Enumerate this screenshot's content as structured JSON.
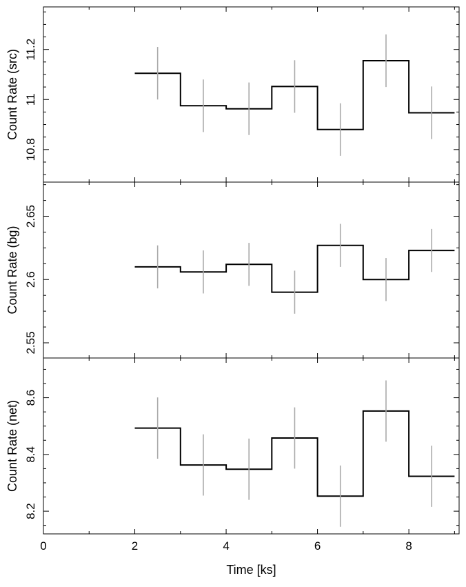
{
  "chart_data": [
    {
      "type": "line",
      "step": true,
      "ylabel": "Count Rate (src)",
      "xlim": [
        0,
        9.1
      ],
      "ylim": [
        10.67,
        11.37
      ],
      "y_ticks": [
        10.8,
        11,
        11.2
      ],
      "y_tick_labels": [
        "10.8",
        "11",
        "11.2"
      ],
      "bins": [
        [
          2,
          3
        ],
        [
          3,
          4
        ],
        [
          4,
          5
        ],
        [
          5,
          6
        ],
        [
          6,
          7
        ],
        [
          7,
          8
        ],
        [
          8,
          9
        ]
      ],
      "x": [
        2.5,
        3.5,
        4.5,
        5.5,
        6.5,
        7.5,
        8.5
      ],
      "values": [
        11.105,
        10.975,
        10.963,
        11.052,
        10.88,
        11.155,
        10.947
      ],
      "errors": [
        0.105,
        0.105,
        0.105,
        0.105,
        0.105,
        0.105,
        0.105
      ]
    },
    {
      "type": "line",
      "step": true,
      "ylabel": "Count Rate (bg)",
      "xlim": [
        0,
        9.1
      ],
      "ylim": [
        2.538,
        2.677
      ],
      "y_ticks": [
        2.55,
        2.6,
        2.65
      ],
      "y_tick_labels": [
        "2.55",
        "2.6",
        "2.65"
      ],
      "bins": [
        [
          2,
          3
        ],
        [
          3,
          4
        ],
        [
          4,
          5
        ],
        [
          5,
          6
        ],
        [
          6,
          7
        ],
        [
          7,
          8
        ],
        [
          8,
          9
        ]
      ],
      "x": [
        2.5,
        3.5,
        4.5,
        5.5,
        6.5,
        7.5,
        8.5
      ],
      "values": [
        2.61,
        2.606,
        2.612,
        2.59,
        2.627,
        2.6,
        2.623
      ],
      "errors": [
        0.017,
        0.017,
        0.017,
        0.017,
        0.017,
        0.017,
        0.017
      ]
    },
    {
      "type": "line",
      "step": true,
      "ylabel": "Count Rate (net)",
      "xlim": [
        0,
        9.1
      ],
      "ylim": [
        8.12,
        8.74
      ],
      "y_ticks": [
        8.2,
        8.4,
        8.6
      ],
      "y_tick_labels": [
        "8.2",
        "8.4",
        "8.6"
      ],
      "x_ticks": [
        0,
        2,
        4,
        6,
        8
      ],
      "x_tick_labels": [
        "0",
        "2",
        "4",
        "6",
        "8"
      ],
      "xlabel": "Time [ks]",
      "bins": [
        [
          2,
          3
        ],
        [
          3,
          4
        ],
        [
          4,
          5
        ],
        [
          5,
          6
        ],
        [
          6,
          7
        ],
        [
          7,
          8
        ],
        [
          8,
          9
        ]
      ],
      "x": [
        2.5,
        3.5,
        4.5,
        5.5,
        6.5,
        7.5,
        8.5
      ],
      "values": [
        8.493,
        8.363,
        8.348,
        8.458,
        8.253,
        8.553,
        8.323
      ],
      "errors": [
        0.108,
        0.108,
        0.108,
        0.108,
        0.108,
        0.108,
        0.108
      ]
    }
  ],
  "colors": {
    "line": "#000000",
    "error_bar": "#a9a9a9",
    "frame": "#000000"
  }
}
